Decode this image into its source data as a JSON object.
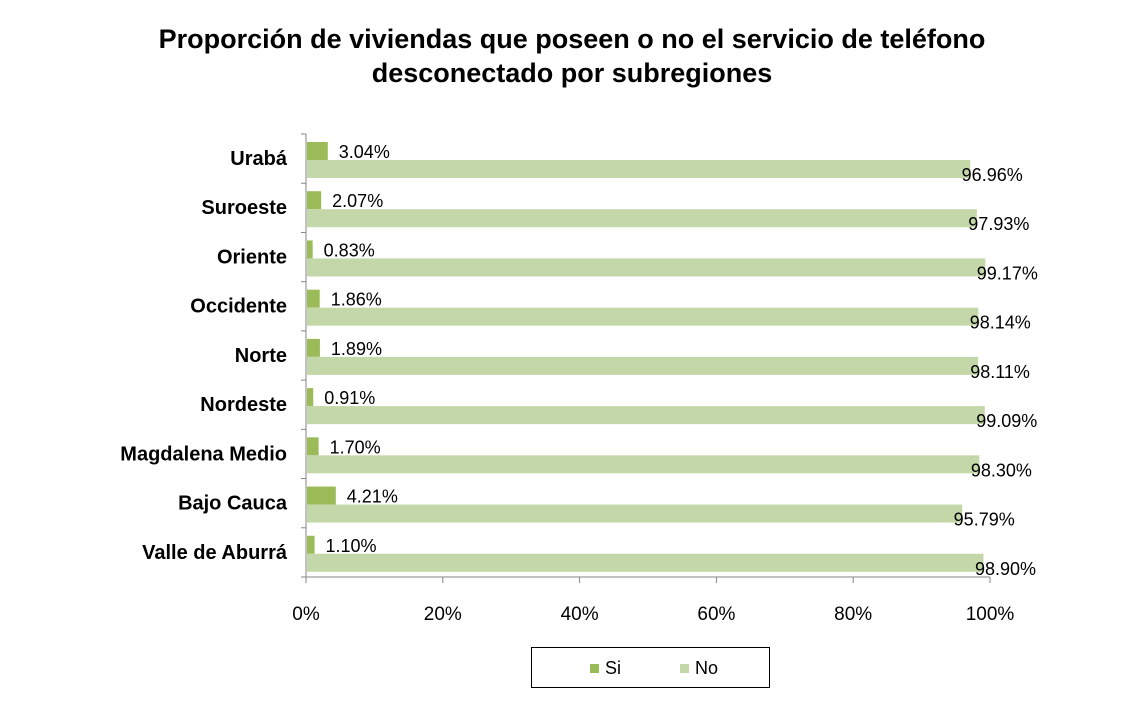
{
  "chart_data": {
    "type": "bar",
    "orientation": "horizontal",
    "title_lines": [
      "Proporción de viviendas que poseen o no el servicio de teléfono",
      "desconectado por subregiones"
    ],
    "categories": [
      "Urabá",
      "Suroeste",
      "Oriente",
      "Occidente",
      "Norte",
      "Nordeste",
      "Magdalena Medio",
      "Bajo Cauca",
      "Valle de Aburrá"
    ],
    "series": [
      {
        "name": "Si",
        "color": "#9bbb59",
        "values": [
          3.04,
          2.07,
          0.83,
          1.86,
          1.89,
          0.91,
          1.7,
          4.21,
          1.1
        ],
        "labels": [
          "3.04%",
          "2.07%",
          "0.83%",
          "1.86%",
          "1.89%",
          "0.91%",
          "1.70%",
          "4.21%",
          "1.10%"
        ]
      },
      {
        "name": "No",
        "color": "#c4d7a9",
        "values": [
          96.96,
          97.93,
          99.17,
          98.14,
          98.11,
          99.09,
          98.3,
          95.79,
          98.9
        ],
        "labels": [
          "96.96%",
          "97.93%",
          "99.17%",
          "98.14%",
          "98.11%",
          "99.09%",
          "98.30%",
          "95.79%",
          "98.90%"
        ]
      }
    ],
    "x_ticks": [
      "0%",
      "20%",
      "40%",
      "60%",
      "80%",
      "100%"
    ],
    "xlim": [
      0,
      100
    ],
    "grid": false,
    "legend_position": "bottom"
  }
}
